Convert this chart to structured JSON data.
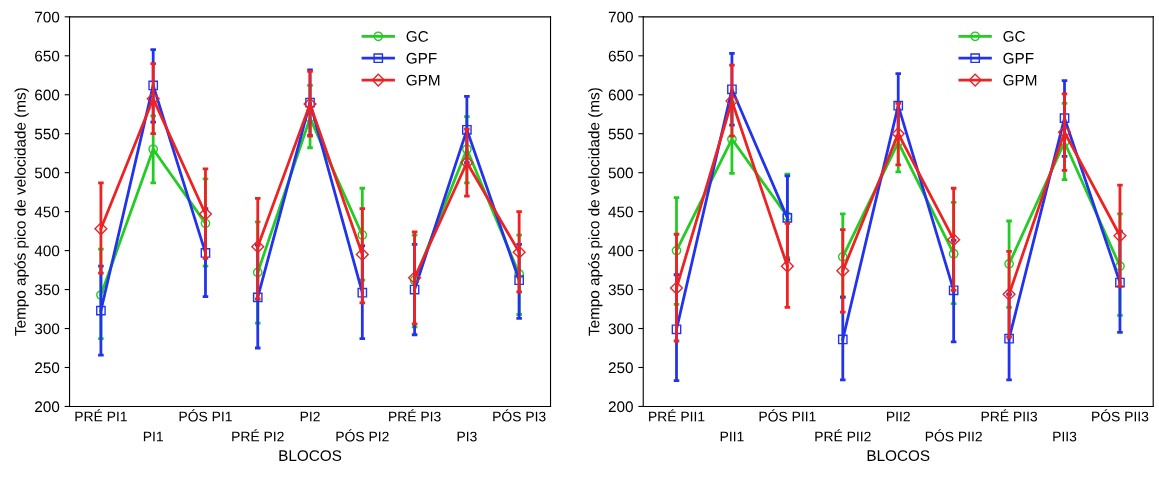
{
  "chart_data": [
    {
      "type": "line",
      "xlabel": "BLOCOS",
      "ylabel": "Tempo após pico de velocidade (ms)",
      "categories": [
        "PRÉ PI1",
        "PI1",
        "PÓS PI1",
        "PRÉ PI2",
        "PI2",
        "PÓS PI2",
        "PRÉ PI3",
        "PI3",
        "PÓS PI3"
      ],
      "ylim": [
        200,
        700
      ],
      "yticks": [
        200,
        250,
        300,
        350,
        400,
        450,
        500,
        550,
        600,
        650,
        700
      ],
      "grid": false,
      "legend": "top right",
      "line_style": "solid",
      "series": [
        {
          "name": "GC",
          "color": "#22cc22",
          "marker": "circle",
          "values": [
            343,
            530,
            435,
            372,
            570,
            420,
            362,
            530,
            370
          ],
          "errors": [
            [
              287,
              402
            ],
            [
              487,
              573
            ],
            [
              380,
              492
            ],
            [
              307,
              437
            ],
            [
              532,
              612
            ],
            [
              362,
              480
            ],
            [
              302,
              420
            ],
            [
              487,
              572
            ],
            [
              318,
              420
            ]
          ]
        },
        {
          "name": "GPF",
          "color": "#2233ee",
          "marker": "square",
          "values": [
            323,
            612,
            397,
            340,
            590,
            346,
            350,
            555,
            362
          ],
          "errors": [
            [
              266,
              380
            ],
            [
              565,
              658
            ],
            [
              341,
              454
            ],
            [
              275,
              407
            ],
            [
              548,
              632
            ],
            [
              287,
              406
            ],
            [
              292,
              408
            ],
            [
              513,
              598
            ],
            [
              313,
              408
            ]
          ]
        },
        {
          "name": "GPM",
          "color": "#ee2222",
          "marker": "diamond",
          "values": [
            428,
            595,
            447,
            405,
            588,
            395,
            365,
            513,
            398
          ],
          "errors": [
            [
              371,
              487
            ],
            [
              550,
              640
            ],
            [
              390,
              505
            ],
            [
              338,
              467
            ],
            [
              547,
              630
            ],
            [
              333,
              454
            ],
            [
              306,
              424
            ],
            [
              470,
              556
            ],
            [
              347,
              450
            ]
          ]
        }
      ]
    },
    {
      "type": "line",
      "xlabel": "BLOCOS",
      "ylabel": "Tempo após pico de velocidade (ms)",
      "categories": [
        "PRÉ PII1",
        "PII1",
        "PÓS PII1",
        "PRÉ PII2",
        "PII2",
        "PÓS PII2",
        "PRÉ PII3",
        "PII3",
        "PÓS PII3"
      ],
      "ylim": [
        200,
        700
      ],
      "yticks": [
        200,
        250,
        300,
        350,
        400,
        450,
        500,
        550,
        600,
        650,
        700
      ],
      "grid": false,
      "legend": "top right",
      "line_style": "solid",
      "series": [
        {
          "name": "GC",
          "color": "#22cc22",
          "marker": "circle",
          "values": [
            400,
            543,
            444,
            392,
            539,
            396,
            383,
            539,
            380
          ],
          "errors": [
            [
              331,
              468
            ],
            [
              499,
              591
            ],
            [
              391,
              498
            ],
            [
              341,
              447
            ],
            [
              501,
              580
            ],
            [
              332,
              462
            ],
            [
              327,
              438
            ],
            [
              491,
              589
            ],
            [
              317,
              447
            ]
          ]
        },
        {
          "name": "GPF",
          "color": "#2233ee",
          "marker": "square",
          "values": [
            299,
            607,
            442,
            286,
            586,
            349,
            287,
            570,
            359
          ],
          "errors": [
            [
              233,
              369
            ],
            [
              561,
              653
            ],
            [
              388,
              496
            ],
            [
              234,
              340
            ],
            [
              547,
              627
            ],
            [
              283,
              413
            ],
            [
              234,
              344
            ],
            [
              521,
              618
            ],
            [
              295,
              425
            ]
          ]
        },
        {
          "name": "GPM",
          "color": "#ee2222",
          "marker": "diamond",
          "values": [
            352,
            592,
            380,
            374,
            550,
            414,
            344,
            552,
            419
          ],
          "errors": [
            [
              284,
              421
            ],
            [
              547,
              638
            ],
            [
              327,
              435
            ],
            [
              321,
              427
            ],
            [
              510,
              589
            ],
            [
              349,
              480
            ],
            [
              289,
              399
            ],
            [
              503,
              601
            ],
            [
              354,
              484
            ]
          ]
        }
      ]
    }
  ]
}
